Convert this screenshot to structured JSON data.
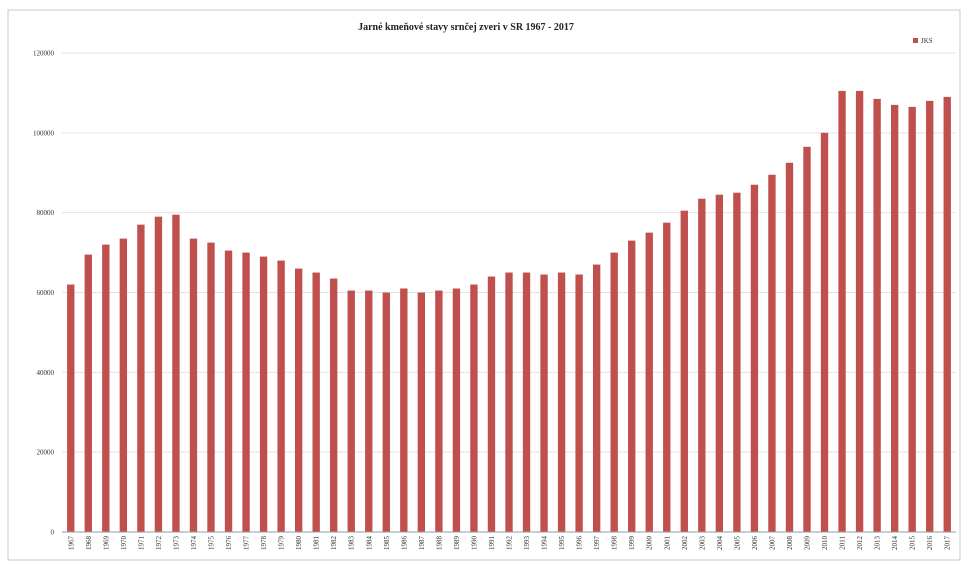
{
  "colors": {
    "bar": "#c0504d",
    "grid": "#e2e2e2"
  },
  "chart_data": {
    "type": "bar",
    "title": "Jarné kmeňové stavy srnčej zveri v SR 1967 - 2017",
    "xlabel": "",
    "ylabel": "",
    "ylim": [
      0,
      120000
    ],
    "yticks": [
      0,
      20000,
      40000,
      60000,
      80000,
      100000,
      120000
    ],
    "ytick_labels": [
      "0",
      "20000",
      "40000",
      "60000",
      "80000",
      "100000",
      "120000"
    ],
    "grid": true,
    "legend_position": "top-right",
    "series": [
      {
        "name": "JKS",
        "values": [
          62000,
          69500,
          72000,
          73500,
          77000,
          79000,
          79500,
          73500,
          72500,
          70500,
          70000,
          69000,
          68000,
          66000,
          65000,
          63500,
          60500,
          60500,
          60000,
          61000,
          60000,
          60500,
          61000,
          62000,
          64000,
          65000,
          65000,
          64500,
          65000,
          64500,
          67000,
          70000,
          73000,
          75000,
          77500,
          80500,
          83500,
          84500,
          85000,
          87000,
          89500,
          92500,
          96500,
          100000,
          110500,
          110500,
          108500,
          107000,
          106500,
          108000,
          109000
        ]
      }
    ],
    "categories": [
      "1967",
      "1968",
      "1969",
      "1970",
      "1971",
      "1972",
      "1973",
      "1974",
      "1975",
      "1976",
      "1977",
      "1978",
      "1979",
      "1980",
      "1981",
      "1982",
      "1983",
      "1984",
      "1985",
      "1986",
      "1987",
      "1988",
      "1989",
      "1990",
      "1991",
      "1992",
      "1993",
      "1994",
      "1995",
      "1996",
      "1997",
      "1998",
      "1999",
      "2000",
      "2001",
      "2002",
      "2003",
      "2004",
      "2005",
      "2006",
      "2007",
      "2008",
      "2009",
      "2010",
      "2011",
      "2012",
      "2013",
      "2014",
      "2015",
      "2016",
      "2017"
    ]
  }
}
